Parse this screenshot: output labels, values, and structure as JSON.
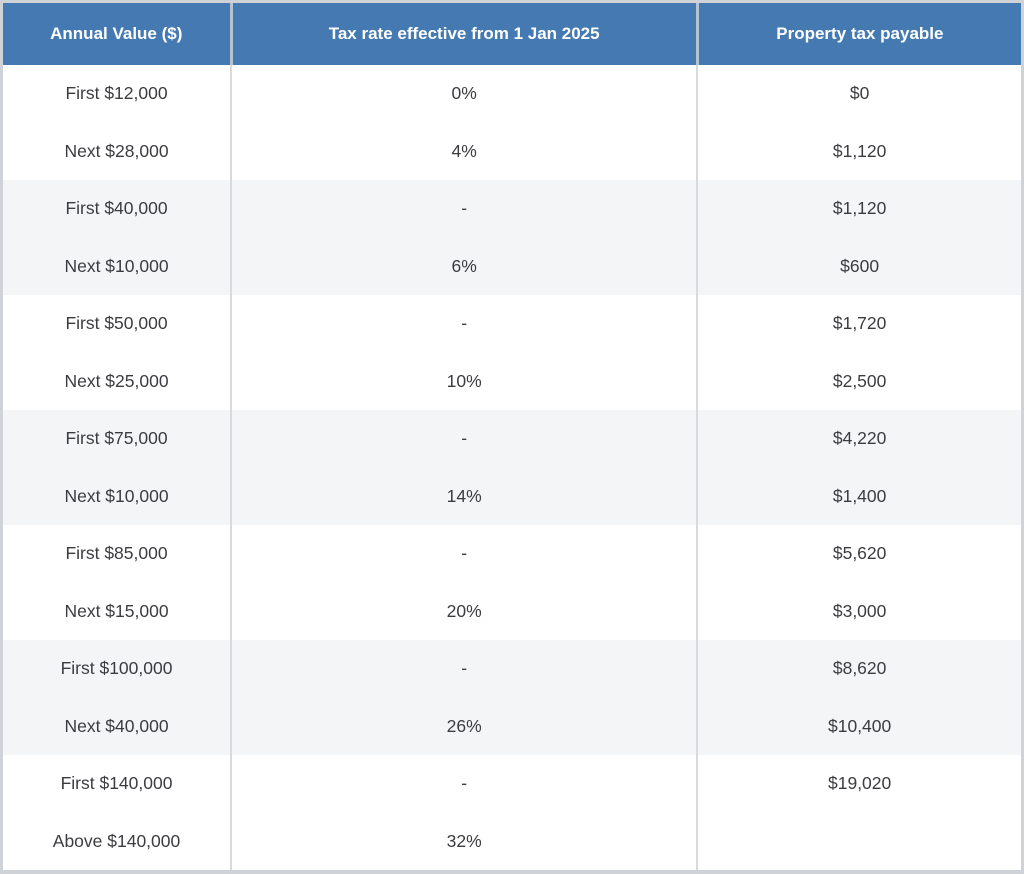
{
  "table": {
    "title": "property-tax-rates",
    "columns": [
      "Annual Value ($)",
      "Tax rate effective from 1 Jan 2025",
      "Property tax payable"
    ],
    "bands": [
      {
        "rows": [
          [
            "First $12,000",
            "0%",
            "$0"
          ],
          [
            "Next $28,000",
            "4%",
            "$1,120"
          ]
        ]
      },
      {
        "rows": [
          [
            "First $40,000",
            "-",
            "$1,120"
          ],
          [
            "Next $10,000",
            "6%",
            "$600"
          ]
        ]
      },
      {
        "rows": [
          [
            "First $50,000",
            "-",
            "$1,720"
          ],
          [
            "Next $25,000",
            "10%",
            "$2,500"
          ]
        ]
      },
      {
        "rows": [
          [
            "First $75,000",
            "-",
            "$4,220"
          ],
          [
            "Next $10,000",
            "14%",
            "$1,400"
          ]
        ]
      },
      {
        "rows": [
          [
            "First $85,000",
            "-",
            "$5,620"
          ],
          [
            "Next $15,000",
            "20%",
            "$3,000"
          ]
        ]
      },
      {
        "rows": [
          [
            "First $100,000",
            "-",
            "$8,620"
          ],
          [
            "Next $40,000",
            "26%",
            "$10,400"
          ]
        ]
      },
      {
        "rows": [
          [
            "First $140,000",
            "-",
            "$19,020"
          ],
          [
            "Above $140,000",
            "32%",
            ""
          ]
        ]
      }
    ]
  },
  "colors": {
    "header_bg": "#4479b1",
    "header_text": "#ffffff",
    "band_alt_bg": "#f4f5f7",
    "body_text": "#3c3c40",
    "outer_border": "#cfd3d8",
    "column_divider": "#d8dade",
    "header_divider": "#b4c2d2"
  }
}
